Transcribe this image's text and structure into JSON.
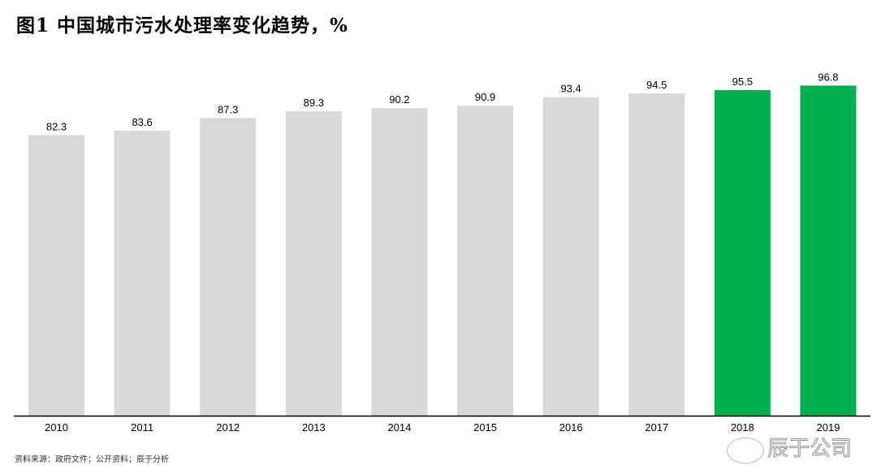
{
  "title": "图1 中国城市污水处理率变化趋势，%",
  "source": "资料来源：政府文件；公开资料；辰于分析",
  "watermark": "辰于公司",
  "colors": {
    "default": "#d9d9d9",
    "highlight": "#00b050",
    "axis": "#000000"
  },
  "chart_data": {
    "type": "bar",
    "title": "图1 中国城市污水处理率变化趋势，%",
    "categories": [
      "2010",
      "2011",
      "2012",
      "2013",
      "2014",
      "2015",
      "2016",
      "2017",
      "2018",
      "2019"
    ],
    "values": [
      82.3,
      83.6,
      87.3,
      89.3,
      90.2,
      90.9,
      93.4,
      94.5,
      95.5,
      96.8
    ],
    "highlighted": [
      "2018",
      "2019"
    ],
    "data_labels": true,
    "xlabel": "",
    "ylabel": "",
    "ylim": [
      0,
      100
    ],
    "grid": false,
    "legend": "none"
  }
}
